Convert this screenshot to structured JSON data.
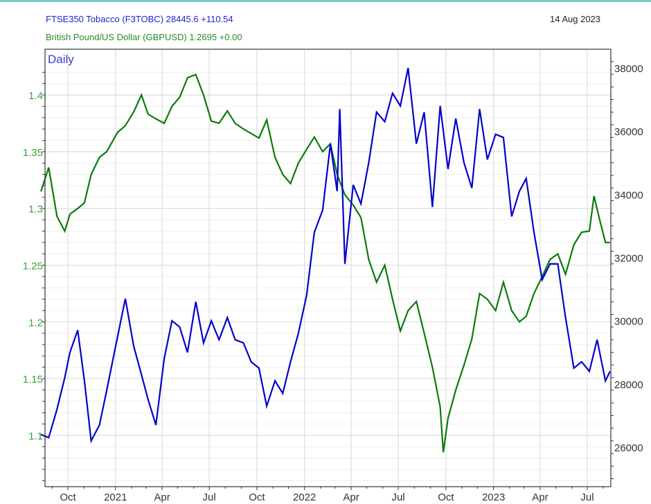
{
  "header": {
    "series1_label": "FTSE350 Tobacco (F3TOBC) 28445.6 +110.54",
    "series2_label": "British Pound/US Dollar (GBPUSD) 1.2695 +0.00",
    "date": "14 Aug 2023",
    "period": "Daily"
  },
  "colors": {
    "series1": "#0000d0",
    "series2": "#0a7a0a",
    "left_axis_text": "#3aa33a",
    "grid": "#e4e4e4",
    "accent_top": "#7fc9c4"
  },
  "chart_data": {
    "type": "line",
    "title": "FTSE350 Tobacco vs British Pound/US Dollar",
    "period": "Daily",
    "date": "14 Aug 2023",
    "x_range": [
      "2020-08",
      "2023-08-14"
    ],
    "x_ticks": [
      "Oct",
      "2021",
      "Apr",
      "Jul",
      "Oct",
      "2022",
      "Apr",
      "Jul",
      "Oct",
      "2023",
      "Apr",
      "Jul"
    ],
    "left_axis": {
      "label": "GBPUSD",
      "ticks": [
        1.1,
        1.15,
        1.2,
        1.25,
        1.3,
        1.35,
        1.4
      ],
      "range": [
        1.06,
        1.43
      ]
    },
    "right_axis": {
      "label": "F3TOBC",
      "ticks": [
        26000,
        28000,
        30000,
        32000,
        34000,
        36000,
        38000
      ],
      "range": [
        25000,
        38600
      ]
    },
    "grid": true,
    "legend_position": "top-left",
    "series": [
      {
        "name": "FTSE350 Tobacco (F3TOBC)",
        "axis": "right",
        "last": 28445.6,
        "change": 110.54,
        "x": [
          "2020-08-10",
          "2020-08-25",
          "2020-09-10",
          "2020-09-25",
          "2020-10-05",
          "2020-10-20",
          "2020-11-02",
          "2020-11-15",
          "2020-12-01",
          "2020-12-15",
          "2021-01-05",
          "2021-01-20",
          "2021-02-05",
          "2021-02-20",
          "2021-03-05",
          "2021-03-20",
          "2021-04-05",
          "2021-04-20",
          "2021-05-05",
          "2021-05-20",
          "2021-06-05",
          "2021-06-20",
          "2021-07-05",
          "2021-07-20",
          "2021-08-05",
          "2021-08-20",
          "2021-09-05",
          "2021-09-20",
          "2021-10-05",
          "2021-10-20",
          "2021-11-05",
          "2021-11-20",
          "2021-12-05",
          "2021-12-20",
          "2022-01-05",
          "2022-01-20",
          "2022-02-05",
          "2022-02-20",
          "2022-03-05",
          "2022-03-10",
          "2022-03-20",
          "2022-04-05",
          "2022-04-20",
          "2022-05-05",
          "2022-05-20",
          "2022-06-05",
          "2022-06-20",
          "2022-07-05",
          "2022-07-20",
          "2022-08-05",
          "2022-08-20",
          "2022-09-05",
          "2022-09-20",
          "2022-10-05",
          "2022-10-20",
          "2022-11-05",
          "2022-11-20",
          "2022-12-05",
          "2022-12-20",
          "2023-01-05",
          "2023-01-20",
          "2023-02-05",
          "2023-02-20",
          "2023-03-05",
          "2023-03-20",
          "2023-04-05",
          "2023-04-20",
          "2023-05-05",
          "2023-05-20",
          "2023-06-05",
          "2023-06-20",
          "2023-07-05",
          "2023-07-20",
          "2023-08-05",
          "2023-08-14"
        ],
        "values": [
          26400,
          26300,
          27200,
          28200,
          29000,
          29700,
          28100,
          26200,
          26700,
          27800,
          29500,
          30700,
          29200,
          28300,
          27500,
          26700,
          28800,
          30000,
          29800,
          29000,
          30600,
          29300,
          30000,
          29400,
          30100,
          29400,
          29300,
          28700,
          28500,
          27300,
          28100,
          27700,
          28700,
          29600,
          30800,
          32800,
          33500,
          35600,
          34100,
          36700,
          31800,
          34300,
          33700,
          35000,
          36600,
          36300,
          37200,
          36800,
          38000,
          35600,
          36600,
          33600,
          36800,
          34800,
          36400,
          35000,
          34200,
          36700,
          35100,
          35900,
          35800,
          33300,
          34100,
          34500,
          32800,
          31300,
          31800,
          31800,
          30100,
          28500,
          28700,
          28400,
          29400,
          28100,
          28400
        ]
      },
      {
        "name": "British Pound/US Dollar (GBPUSD)",
        "axis": "left",
        "last": 1.2695,
        "change": 0.0,
        "x": [
          "2020-08-10",
          "2020-08-25",
          "2020-09-10",
          "2020-09-25",
          "2020-10-05",
          "2020-10-20",
          "2020-11-02",
          "2020-11-15",
          "2020-12-01",
          "2020-12-15",
          "2021-01-05",
          "2021-01-20",
          "2021-02-05",
          "2021-02-20",
          "2021-03-05",
          "2021-03-20",
          "2021-04-05",
          "2021-04-20",
          "2021-05-05",
          "2021-05-20",
          "2021-06-05",
          "2021-06-20",
          "2021-07-05",
          "2021-07-20",
          "2021-08-05",
          "2021-08-20",
          "2021-09-05",
          "2021-09-20",
          "2021-10-05",
          "2021-10-20",
          "2021-11-05",
          "2021-11-20",
          "2021-12-05",
          "2021-12-20",
          "2022-01-05",
          "2022-01-20",
          "2022-02-05",
          "2022-02-20",
          "2022-03-05",
          "2022-03-20",
          "2022-04-05",
          "2022-04-20",
          "2022-05-05",
          "2022-05-20",
          "2022-06-05",
          "2022-06-20",
          "2022-07-05",
          "2022-07-20",
          "2022-08-05",
          "2022-08-20",
          "2022-09-05",
          "2022-09-20",
          "2022-09-26",
          "2022-10-05",
          "2022-10-20",
          "2022-11-05",
          "2022-11-20",
          "2022-12-05",
          "2022-12-20",
          "2023-01-05",
          "2023-01-20",
          "2023-02-05",
          "2023-02-20",
          "2023-03-05",
          "2023-03-20",
          "2023-04-05",
          "2023-04-20",
          "2023-05-05",
          "2023-05-20",
          "2023-06-05",
          "2023-06-20",
          "2023-07-05",
          "2023-07-14",
          "2023-07-25",
          "2023-08-05",
          "2023-08-14"
        ],
        "values": [
          1.315,
          1.336,
          1.293,
          1.28,
          1.295,
          1.3,
          1.305,
          1.33,
          1.345,
          1.35,
          1.367,
          1.373,
          1.385,
          1.4,
          1.383,
          1.379,
          1.375,
          1.39,
          1.398,
          1.415,
          1.418,
          1.4,
          1.377,
          1.375,
          1.386,
          1.375,
          1.37,
          1.366,
          1.362,
          1.378,
          1.345,
          1.33,
          1.322,
          1.34,
          1.352,
          1.363,
          1.35,
          1.357,
          1.33,
          1.312,
          1.303,
          1.292,
          1.255,
          1.235,
          1.25,
          1.22,
          1.192,
          1.21,
          1.218,
          1.19,
          1.16,
          1.125,
          1.085,
          1.115,
          1.14,
          1.162,
          1.185,
          1.225,
          1.22,
          1.21,
          1.235,
          1.21,
          1.2,
          1.205,
          1.225,
          1.24,
          1.255,
          1.26,
          1.242,
          1.268,
          1.279,
          1.28,
          1.311,
          1.29,
          1.27,
          1.27
        ]
      }
    ]
  }
}
